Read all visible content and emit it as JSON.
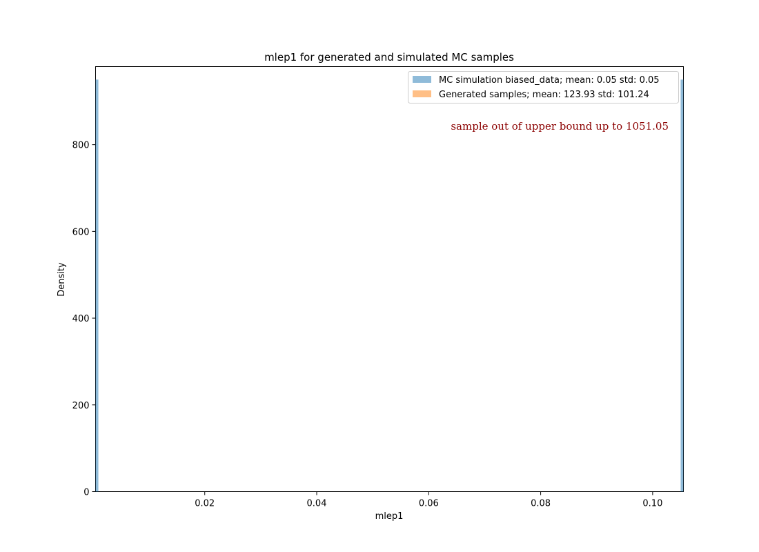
{
  "chart_data": {
    "type": "bar",
    "title": "mlep1 for generated and simulated MC samples",
    "xlabel": "mlep1",
    "ylabel": "Density",
    "xlim": [
      0.0005,
      0.1055
    ],
    "ylim": [
      0,
      980
    ],
    "xticks": [
      0.02,
      0.04,
      0.06,
      0.08,
      0.1
    ],
    "xtick_labels": [
      "0.02",
      "0.04",
      "0.06",
      "0.08",
      "0.10"
    ],
    "yticks": [
      0,
      200,
      400,
      600,
      800
    ],
    "ytick_labels": [
      "0",
      "200",
      "400",
      "600",
      "800"
    ],
    "series": [
      {
        "name": "MC simulation biased_data; mean: 0.05 std: 0.05",
        "color": "#1f77b4",
        "alpha": 0.5,
        "bins": [
          {
            "x0": 0.0005,
            "x1": 0.001,
            "value": 950
          },
          {
            "x0": 0.105,
            "x1": 0.1055,
            "value": 950
          }
        ]
      },
      {
        "name": "Generated samples; mean: 123.93 std: 101.24",
        "color": "#ff7f0e",
        "alpha": 0.5,
        "bins": []
      }
    ],
    "annotations": [
      {
        "text": "sample out of upper bound up to 1051.05",
        "color": "#8b0000"
      }
    ],
    "legend": {
      "position": "top-right"
    },
    "grid": false
  }
}
